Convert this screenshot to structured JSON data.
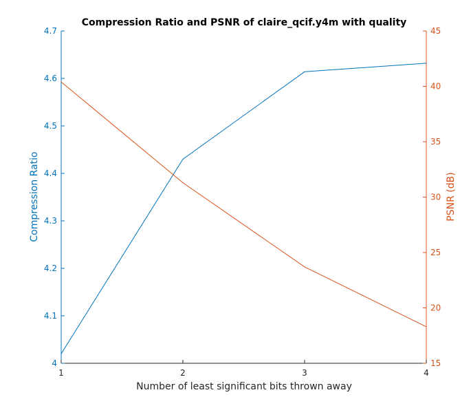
{
  "chart_data": {
    "type": "line",
    "title": "Compression Ratio and PSNR of claire_qcif.y4m with quality",
    "xlabel": "Number of least significant bits thrown away",
    "x": [
      1,
      2,
      3,
      4
    ],
    "xlim": [
      1,
      4
    ],
    "xticks": [
      "1",
      "2",
      "3",
      "4"
    ],
    "y_left": {
      "label": "Compression Ratio",
      "lim": [
        4.0,
        4.7
      ],
      "ticks": [
        "4",
        "4.1",
        "4.2",
        "4.3",
        "4.4",
        "4.5",
        "4.6",
        "4.7"
      ],
      "color": "#0072BD"
    },
    "y_right": {
      "label": "PSNR (dB)",
      "lim": [
        15,
        45
      ],
      "ticks": [
        "15",
        "20",
        "25",
        "30",
        "35",
        "40",
        "45"
      ],
      "color": "#D95319"
    },
    "series": [
      {
        "axis": "left",
        "color": "#0072BD",
        "values": [
          4.02,
          4.43,
          4.614,
          4.632
        ]
      },
      {
        "axis": "right",
        "color": "#D95319",
        "values": [
          40.4,
          31.3,
          23.7,
          18.3
        ]
      }
    ],
    "grid": false
  }
}
